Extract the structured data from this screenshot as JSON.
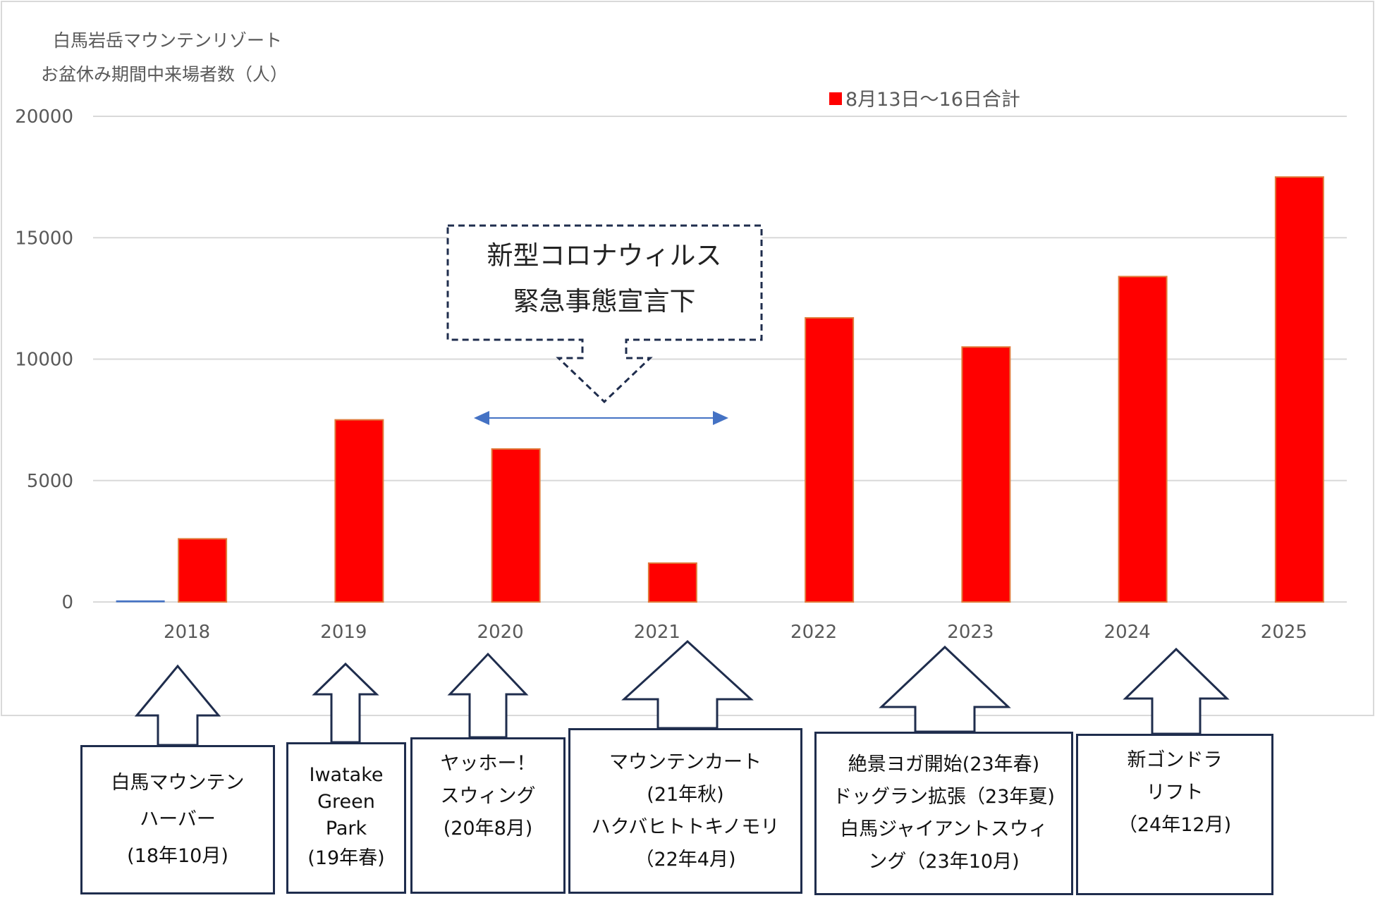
{
  "chart_data": {
    "type": "bar",
    "title": [
      "白馬岩岳マウンテンリゾート",
      "お盆休み期間中来場者数（人）"
    ],
    "categories": [
      "2018",
      "2019",
      "2020",
      "2021",
      "2022",
      "2023",
      "2024",
      "2025"
    ],
    "series": [
      {
        "name": "",
        "values": [
          50,
          0,
          0,
          0,
          0,
          0,
          0,
          0
        ],
        "color": "#4472c4"
      },
      {
        "name": "8月13日～16日合計",
        "values": [
          2600,
          7500,
          6300,
          1600,
          11700,
          10500,
          13400,
          17500
        ],
        "color": "#ff0000"
      }
    ],
    "y_ticks": [
      "0",
      "5000",
      "10000",
      "15000",
      "20000"
    ],
    "ylim": [
      0,
      20000
    ],
    "grid": true,
    "legend_position": "top-right"
  },
  "callout": {
    "lines": [
      "新型コロナウィルス",
      "緊急事態宣言下"
    ],
    "range": [
      "2020",
      "2021"
    ]
  },
  "events": [
    {
      "year": "2018",
      "lines": [
        "白馬マウンテン",
        "ハーバー",
        "(18年10月)"
      ]
    },
    {
      "year": "2019",
      "lines": [
        "Iwatake",
        "Green",
        "Park",
        "(19年春)"
      ]
    },
    {
      "year": "2020",
      "lines": [
        "ヤッホー！",
        "スウィング",
        "(20年8月)"
      ]
    },
    {
      "year": "2021",
      "lines": [
        "マウンテンカート",
        "(21年秋)",
        "ハクバヒトトキノモリ",
        "（22年4月)"
      ]
    },
    {
      "year": "2023",
      "lines": [
        "絶景ヨガ開始(23年春)",
        "ドッグラン拡張（23年夏)",
        "白馬ジャイアントスウィ",
        "ング（23年10月)"
      ]
    },
    {
      "year": "2024",
      "lines": [
        "新ゴンドラ",
        "リフト",
        "（24年12月)"
      ]
    }
  ],
  "colors": {
    "bar": "#ff0000",
    "bar_edge": "#e07a3a",
    "grid": "#d9d9d9",
    "text": "#595959",
    "arrow": "#4472c4",
    "frame": "#1f2d4d"
  }
}
